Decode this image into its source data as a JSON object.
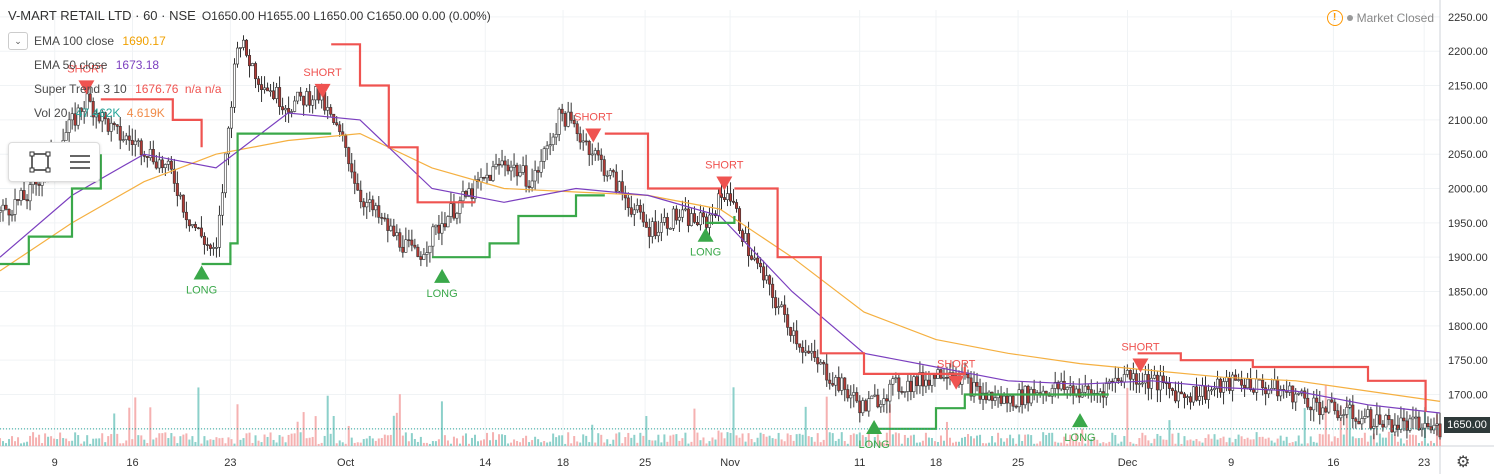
{
  "header": {
    "symbol": "V-MART RETAIL LTD · 60 · NSE",
    "ohlc": "O1650.00 H1655.00 L1650.00 C1650.00 0.00 (0.00%)"
  },
  "indicators": [
    {
      "name": "EMA 100 close",
      "value": "1690.17",
      "color": "#f0a000"
    },
    {
      "name": "EMA 50 close",
      "value": "1673.18",
      "color": "#7b3fbf"
    },
    {
      "name": "Super Trend 3 10",
      "value": "1676.76",
      "extra": "n/a n/a",
      "color": "#ef5350"
    },
    {
      "name": "Vol 20",
      "value": "47.462K",
      "extra": "4.619K",
      "color": "#26a69a"
    }
  ],
  "status": {
    "market": "Market Closed"
  },
  "price_axis": {
    "current": "1650.00"
  },
  "chart_data": {
    "type": "candlestick",
    "yticks": [
      2250,
      2200,
      2150,
      2100,
      2050,
      2000,
      1950,
      1900,
      1850,
      1800,
      1750,
      1700,
      1650
    ],
    "ylim": [
      1625,
      2260
    ],
    "xticks": [
      "9",
      "16",
      "23",
      "Oct",
      "14",
      "18",
      "25",
      "Nov",
      "11",
      "18",
      "25",
      "Dec",
      "9",
      "16",
      "23"
    ],
    "xtick_pos": [
      0.038,
      0.092,
      0.16,
      0.24,
      0.337,
      0.391,
      0.448,
      0.507,
      0.597,
      0.65,
      0.707,
      0.783,
      0.855,
      0.926,
      0.989
    ],
    "price_path": [
      [
        0.0,
        1965
      ],
      [
        0.02,
        1990
      ],
      [
        0.04,
        2060
      ],
      [
        0.06,
        2130
      ],
      [
        0.08,
        2080
      ],
      [
        0.1,
        2060
      ],
      [
        0.12,
        2020
      ],
      [
        0.13,
        1960
      ],
      [
        0.14,
        1930
      ],
      [
        0.15,
        1900
      ],
      [
        0.155,
        2010
      ],
      [
        0.165,
        2220
      ],
      [
        0.18,
        2160
      ],
      [
        0.2,
        2120
      ],
      [
        0.22,
        2140
      ],
      [
        0.24,
        2060
      ],
      [
        0.25,
        1990
      ],
      [
        0.27,
        1940
      ],
      [
        0.29,
        1900
      ],
      [
        0.31,
        1960
      ],
      [
        0.33,
        2000
      ],
      [
        0.35,
        2040
      ],
      [
        0.37,
        2010
      ],
      [
        0.39,
        2110
      ],
      [
        0.41,
        2060
      ],
      [
        0.43,
        2000
      ],
      [
        0.45,
        1940
      ],
      [
        0.47,
        1960
      ],
      [
        0.49,
        1950
      ],
      [
        0.505,
        2000
      ],
      [
        0.52,
        1910
      ],
      [
        0.54,
        1830
      ],
      [
        0.56,
        1760
      ],
      [
        0.58,
        1720
      ],
      [
        0.6,
        1680
      ],
      [
        0.62,
        1710
      ],
      [
        0.64,
        1720
      ],
      [
        0.66,
        1740
      ],
      [
        0.68,
        1700
      ],
      [
        0.7,
        1690
      ],
      [
        0.72,
        1705
      ],
      [
        0.74,
        1710
      ],
      [
        0.76,
        1700
      ],
      [
        0.78,
        1730
      ],
      [
        0.8,
        1720
      ],
      [
        0.82,
        1700
      ],
      [
        0.84,
        1705
      ],
      [
        0.86,
        1720
      ],
      [
        0.88,
        1710
      ],
      [
        0.9,
        1700
      ],
      [
        0.92,
        1680
      ],
      [
        0.94,
        1670
      ],
      [
        0.96,
        1660
      ],
      [
        0.98,
        1655
      ],
      [
        1.0,
        1650
      ]
    ],
    "ema100_path": [
      [
        0.0,
        1880
      ],
      [
        0.05,
        1950
      ],
      [
        0.1,
        2010
      ],
      [
        0.15,
        2050
      ],
      [
        0.2,
        2070
      ],
      [
        0.25,
        2080
      ],
      [
        0.3,
        2030
      ],
      [
        0.35,
        2000
      ],
      [
        0.4,
        1995
      ],
      [
        0.45,
        1990
      ],
      [
        0.5,
        1970
      ],
      [
        0.55,
        1900
      ],
      [
        0.6,
        1820
      ],
      [
        0.65,
        1780
      ],
      [
        0.7,
        1760
      ],
      [
        0.75,
        1745
      ],
      [
        0.8,
        1735
      ],
      [
        0.85,
        1725
      ],
      [
        0.9,
        1720
      ],
      [
        0.95,
        1705
      ],
      [
        1.0,
        1690
      ]
    ],
    "ema50_path": [
      [
        0.0,
        1900
      ],
      [
        0.05,
        1990
      ],
      [
        0.1,
        2050
      ],
      [
        0.15,
        2030
      ],
      [
        0.2,
        2110
      ],
      [
        0.25,
        2100
      ],
      [
        0.3,
        2000
      ],
      [
        0.35,
        1980
      ],
      [
        0.4,
        2000
      ],
      [
        0.45,
        1990
      ],
      [
        0.5,
        1960
      ],
      [
        0.55,
        1850
      ],
      [
        0.6,
        1760
      ],
      [
        0.65,
        1740
      ],
      [
        0.7,
        1720
      ],
      [
        0.75,
        1715
      ],
      [
        0.8,
        1720
      ],
      [
        0.85,
        1710
      ],
      [
        0.9,
        1705
      ],
      [
        0.95,
        1685
      ],
      [
        1.0,
        1673
      ]
    ],
    "supertrend_red": [
      [
        [
          0.07,
          2130
        ],
        [
          0.12,
          2100
        ],
        [
          0.14,
          2060
        ]
      ],
      [
        [
          0.23,
          2210
        ],
        [
          0.25,
          2150
        ],
        [
          0.27,
          2060
        ],
        [
          0.29,
          1980
        ],
        [
          0.33,
          1980
        ]
      ],
      [
        [
          0.42,
          2080
        ],
        [
          0.45,
          2000
        ],
        [
          0.5,
          1990
        ]
      ],
      [
        [
          0.51,
          2000
        ],
        [
          0.54,
          1900
        ],
        [
          0.57,
          1760
        ],
        [
          0.6,
          1730
        ],
        [
          0.67,
          1740
        ]
      ],
      [
        [
          0.79,
          1760
        ],
        [
          0.82,
          1750
        ],
        [
          0.87,
          1740
        ],
        [
          0.95,
          1720
        ],
        [
          0.99,
          1675
        ]
      ]
    ],
    "supertrend_green": [
      [
        [
          0.0,
          1890
        ],
        [
          0.02,
          1930
        ],
        [
          0.05,
          2000
        ],
        [
          0.07,
          2050
        ]
      ],
      [
        [
          0.14,
          1890
        ],
        [
          0.16,
          1920
        ],
        [
          0.165,
          2080
        ],
        [
          0.23,
          2080
        ]
      ],
      [
        [
          0.3,
          1900
        ],
        [
          0.34,
          1920
        ],
        [
          0.36,
          1960
        ],
        [
          0.4,
          1990
        ],
        [
          0.42,
          1990
        ]
      ],
      [
        [
          0.49,
          1950
        ],
        [
          0.51,
          1960
        ]
      ],
      [
        [
          0.61,
          1650
        ],
        [
          0.65,
          1680
        ],
        [
          0.67,
          1700
        ],
        [
          0.77,
          1700
        ]
      ]
    ],
    "signals": [
      {
        "type": "SHORT",
        "x": 0.06,
        "y": 2140
      },
      {
        "type": "LONG",
        "x": 0.14,
        "y": 1885
      },
      {
        "type": "SHORT",
        "x": 0.224,
        "y": 2135
      },
      {
        "type": "LONG",
        "x": 0.307,
        "y": 1880
      },
      {
        "type": "SHORT",
        "x": 0.412,
        "y": 2070
      },
      {
        "type": "LONG",
        "x": 0.49,
        "y": 1940
      },
      {
        "type": "SHORT",
        "x": 0.503,
        "y": 2000
      },
      {
        "type": "LONG",
        "x": 0.607,
        "y": 1660
      },
      {
        "type": "SHORT",
        "x": 0.664,
        "y": 1710
      },
      {
        "type": "LONG",
        "x": 0.75,
        "y": 1670
      },
      {
        "type": "SHORT",
        "x": 0.792,
        "y": 1735
      }
    ]
  },
  "colors": {
    "up": "#26a69a",
    "down": "#ef5350",
    "candle_body": "#333333",
    "grid": "#f0f3f5",
    "axis": "#9598a1"
  }
}
